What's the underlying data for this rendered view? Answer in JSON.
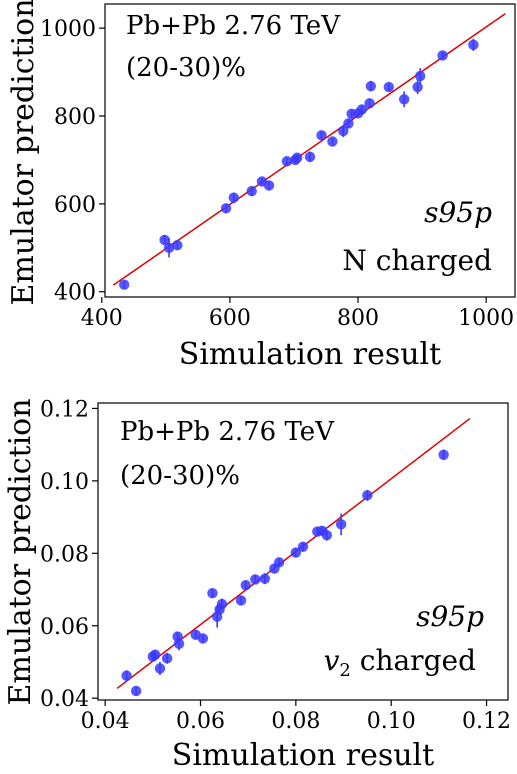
{
  "chart_data": [
    {
      "type": "scatter",
      "xlabel": "Simulation result",
      "ylabel": "Emulator prediction",
      "annotations": [
        "Pb+Pb 2.76 TeV",
        "(20-30)%",
        "s95p",
        "N charged"
      ],
      "xlim": [
        405,
        1045
      ],
      "ylim": [
        388,
        1055
      ],
      "xticks": [
        "400",
        "600",
        "800",
        "1000"
      ],
      "yticks": [
        "400",
        "600",
        "800",
        "1000"
      ],
      "xtick_values": [
        400,
        600,
        800,
        1000
      ],
      "ytick_values": [
        400,
        600,
        800,
        1000
      ],
      "fit_line": [
        [
          418,
          415
        ],
        [
          1030,
          1033
        ]
      ],
      "colors": {
        "points": "#3a3aff",
        "line": "#e00000"
      },
      "points": [
        {
          "x": 435,
          "y": 416,
          "err": 8
        },
        {
          "x": 498,
          "y": 518,
          "err": 10
        },
        {
          "x": 505,
          "y": 500,
          "err": 22
        },
        {
          "x": 518,
          "y": 506,
          "err": 10
        },
        {
          "x": 594,
          "y": 590,
          "err": 10
        },
        {
          "x": 606,
          "y": 614,
          "err": 12
        },
        {
          "x": 634,
          "y": 629,
          "err": 10
        },
        {
          "x": 650,
          "y": 651,
          "err": 8
        },
        {
          "x": 661,
          "y": 642,
          "err": 10
        },
        {
          "x": 689,
          "y": 697,
          "err": 8
        },
        {
          "x": 702,
          "y": 700,
          "err": 8
        },
        {
          "x": 705,
          "y": 705,
          "err": 8
        },
        {
          "x": 725,
          "y": 707,
          "err": 12
        },
        {
          "x": 743,
          "y": 756,
          "err": 10
        },
        {
          "x": 760,
          "y": 742,
          "err": 8
        },
        {
          "x": 777,
          "y": 766,
          "err": 14
        },
        {
          "x": 785,
          "y": 783,
          "err": 10
        },
        {
          "x": 790,
          "y": 805,
          "err": 10
        },
        {
          "x": 800,
          "y": 806,
          "err": 8
        },
        {
          "x": 806,
          "y": 815,
          "err": 8
        },
        {
          "x": 818,
          "y": 829,
          "err": 10
        },
        {
          "x": 820,
          "y": 868,
          "err": 12
        },
        {
          "x": 848,
          "y": 866,
          "err": 8
        },
        {
          "x": 872,
          "y": 838,
          "err": 18
        },
        {
          "x": 893,
          "y": 866,
          "err": 16
        },
        {
          "x": 897,
          "y": 891,
          "err": 18
        },
        {
          "x": 932,
          "y": 938,
          "err": 8
        },
        {
          "x": 980,
          "y": 962,
          "err": 14
        }
      ]
    },
    {
      "type": "scatter",
      "xlabel": "Simulation result",
      "ylabel": "Emulator prediction",
      "annotations": [
        "Pb+Pb 2.76 TeV",
        "(20-30)%",
        "s95p",
        "v2 charged"
      ],
      "xlim": [
        0.0385,
        0.1245
      ],
      "ylim": [
        0.0395,
        0.1215
      ],
      "xticks": [
        "0.04",
        "0.06",
        "0.08",
        "0.10",
        "0.12"
      ],
      "yticks": [
        "0.04",
        "0.06",
        "0.08",
        "0.10",
        "0.12"
      ],
      "xtick_values": [
        0.04,
        0.06,
        0.08,
        0.1,
        0.12
      ],
      "ytick_values": [
        0.04,
        0.06,
        0.08,
        0.1,
        0.12
      ],
      "fit_line": [
        [
          0.0425,
          0.0427
        ],
        [
          0.1165,
          0.1172
        ]
      ],
      "colors": {
        "points": "#3a3aff",
        "line": "#e00000"
      },
      "points": [
        {
          "x": 0.0445,
          "y": 0.0462,
          "err": 0.0015
        },
        {
          "x": 0.0465,
          "y": 0.042,
          "err": 0.0012
        },
        {
          "x": 0.05,
          "y": 0.0515,
          "err": 0.0015
        },
        {
          "x": 0.0505,
          "y": 0.052,
          "err": 0.0012
        },
        {
          "x": 0.0515,
          "y": 0.0482,
          "err": 0.0018
        },
        {
          "x": 0.053,
          "y": 0.051,
          "err": 0.0015
        },
        {
          "x": 0.0552,
          "y": 0.057,
          "err": 0.0012
        },
        {
          "x": 0.0555,
          "y": 0.055,
          "err": 0.0018
        },
        {
          "x": 0.059,
          "y": 0.0575,
          "err": 0.0012
        },
        {
          "x": 0.0605,
          "y": 0.0565,
          "err": 0.0012
        },
        {
          "x": 0.0625,
          "y": 0.069,
          "err": 0.0012
        },
        {
          "x": 0.0635,
          "y": 0.0625,
          "err": 0.003
        },
        {
          "x": 0.064,
          "y": 0.0645,
          "err": 0.0015
        },
        {
          "x": 0.0645,
          "y": 0.066,
          "err": 0.0015
        },
        {
          "x": 0.0685,
          "y": 0.067,
          "err": 0.0012
        },
        {
          "x": 0.0695,
          "y": 0.0712,
          "err": 0.0012
        },
        {
          "x": 0.0715,
          "y": 0.0728,
          "err": 0.0012
        },
        {
          "x": 0.0735,
          "y": 0.073,
          "err": 0.0015
        },
        {
          "x": 0.0755,
          "y": 0.0758,
          "err": 0.0012
        },
        {
          "x": 0.0765,
          "y": 0.0775,
          "err": 0.0012
        },
        {
          "x": 0.08,
          "y": 0.0802,
          "err": 0.0012
        },
        {
          "x": 0.0815,
          "y": 0.0818,
          "err": 0.0012
        },
        {
          "x": 0.0845,
          "y": 0.086,
          "err": 0.0012
        },
        {
          "x": 0.0855,
          "y": 0.0862,
          "err": 0.0012
        },
        {
          "x": 0.0865,
          "y": 0.085,
          "err": 0.0015
        },
        {
          "x": 0.0895,
          "y": 0.088,
          "err": 0.003
        },
        {
          "x": 0.095,
          "y": 0.096,
          "err": 0.0015
        },
        {
          "x": 0.111,
          "y": 0.1072,
          "err": 0.0015
        }
      ]
    }
  ]
}
